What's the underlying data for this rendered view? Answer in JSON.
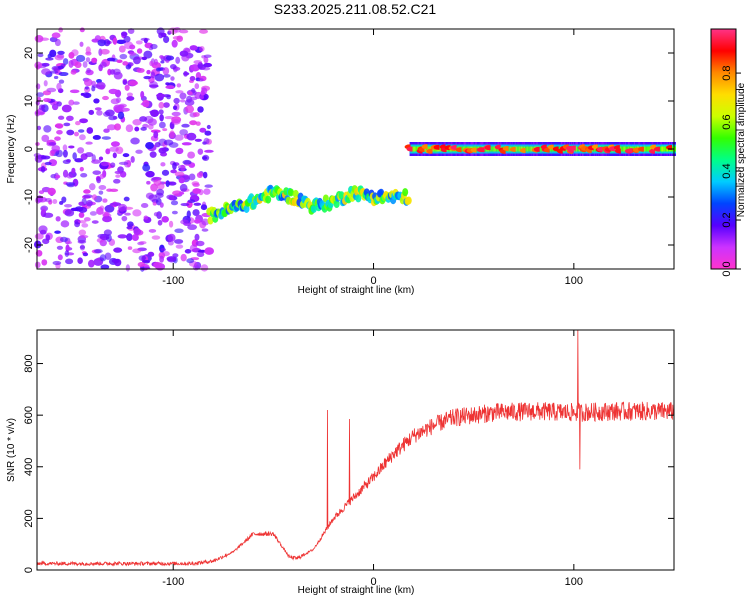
{
  "title": "S233.2025.211.08.52.C21",
  "chart_data": [
    {
      "type": "heatmap",
      "xlabel": "Height of straight line (km)",
      "ylabel": "Frequency (Hz)",
      "xlim": [
        -168,
        150
      ],
      "ylim": [
        -25,
        25
      ],
      "xticks": [
        -100,
        0,
        100
      ],
      "yticks": [
        -20,
        -10,
        0,
        10,
        20
      ],
      "colorbar": {
        "label": "Normalized spectral amplitude",
        "range": [
          0.0,
          0.98
        ],
        "ticks": [
          0.0,
          0.2,
          0.4,
          0.6,
          0.8
        ],
        "colormap": [
          "#ff33cc",
          "#cc33ff",
          "#5500ff",
          "#0044ff",
          "#00ccff",
          "#00ff88",
          "#33ff00",
          "#ccff00",
          "#ffdd00",
          "#ff8800",
          "#ff0000",
          "#ff3388"
        ]
      },
      "features": [
        {
          "name": "noise",
          "x_range": [
            -168,
            -82
          ],
          "f_range": [
            -25,
            25
          ],
          "amplitude": 0.05
        },
        {
          "name": "track",
          "points": [
            [
              -82,
              -14
            ],
            [
              -75,
              -13
            ],
            [
              -68,
              -12
            ],
            [
              -60,
              -11
            ],
            [
              -50,
              -9
            ],
            [
              -40,
              -10
            ],
            [
              -30,
              -12
            ],
            [
              -20,
              -11
            ],
            [
              -10,
              -9
            ],
            [
              0,
              -10
            ],
            [
              10,
              -10
            ],
            [
              18,
              -10
            ]
          ],
          "amplitude": 0.5
        },
        {
          "name": "band",
          "x_range": [
            18,
            150
          ],
          "f": 0,
          "amplitude": 0.45
        }
      ]
    },
    {
      "type": "line",
      "xlabel": "Height of straight line (km)",
      "ylabel": "SNR (10 * v/v)",
      "xlim": [
        -168,
        150
      ],
      "ylim": [
        0,
        930
      ],
      "xticks": [
        -100,
        0,
        100
      ],
      "yticks": [
        0,
        200,
        400,
        600,
        800
      ],
      "color": "#ee3333",
      "envelope": {
        "x": [
          -168,
          -90,
          -80,
          -70,
          -60,
          -50,
          -42,
          -38,
          -30,
          -20,
          -10,
          0,
          10,
          20,
          30,
          40,
          60,
          80,
          100,
          120,
          150
        ],
        "y": [
          25,
          25,
          35,
          70,
          140,
          140,
          50,
          45,
          80,
          200,
          280,
          360,
          450,
          520,
          560,
          590,
          610,
          615,
          610,
          615,
          615
        ]
      },
      "spikes": [
        {
          "x": -23,
          "y": 620
        },
        {
          "x": -12,
          "y": 585
        },
        {
          "x": 102,
          "y": 930
        },
        {
          "x": 103,
          "y": 390
        }
      ]
    }
  ]
}
